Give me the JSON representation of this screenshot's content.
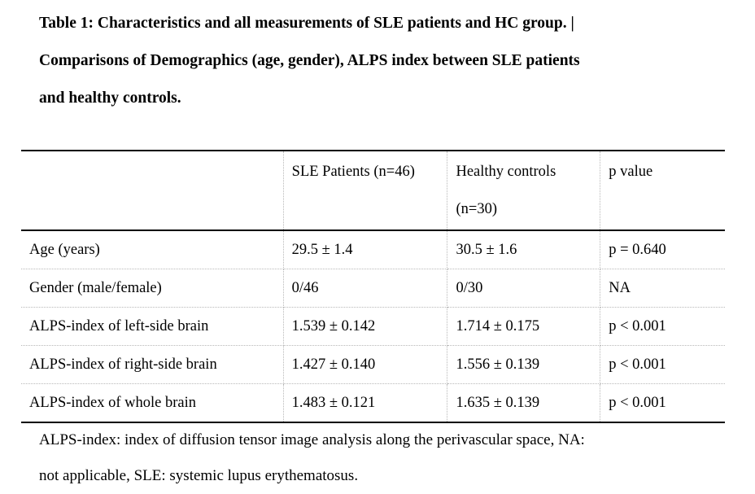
{
  "caption": {
    "lines": [
      "Table 1: Characteristics and all measurements of SLE patients and HC group. |",
      "Comparisons of Demographics (age, gender), ALPS index between SLE patients",
      "and healthy controls."
    ]
  },
  "table": {
    "headers": {
      "col1": "",
      "col2": "SLE Patients (n=46)",
      "col3_line1": "Healthy controls",
      "col3_line2": "(n=30)",
      "col4": "p value"
    },
    "rows": [
      {
        "label": "Age (years)",
        "sle": "29.5 ± 1.4",
        "hc": "30.5 ± 1.6",
        "p": "p = 0.640"
      },
      {
        "label": "Gender (male/female)",
        "sle": "0/46",
        "hc": "0/30",
        "p": "NA"
      },
      {
        "label": "ALPS-index of left-side brain",
        "sle": "1.539 ± 0.142",
        "hc": "1.714 ± 0.175",
        "p": "p < 0.001"
      },
      {
        "label": "ALPS-index of right-side brain",
        "sle": "1.427 ± 0.140",
        "hc": "1.556 ± 0.139",
        "p": "p < 0.001"
      },
      {
        "label": "ALPS-index of whole brain",
        "sle": "1.483 ± 0.121",
        "hc": "1.635 ± 0.139",
        "p": "p < 0.001"
      }
    ]
  },
  "footnote": {
    "lines": [
      "ALPS-index: index of diffusion tensor image analysis along the perivascular space, NA:",
      "not applicable, SLE: systemic lupus erythematosus."
    ]
  }
}
